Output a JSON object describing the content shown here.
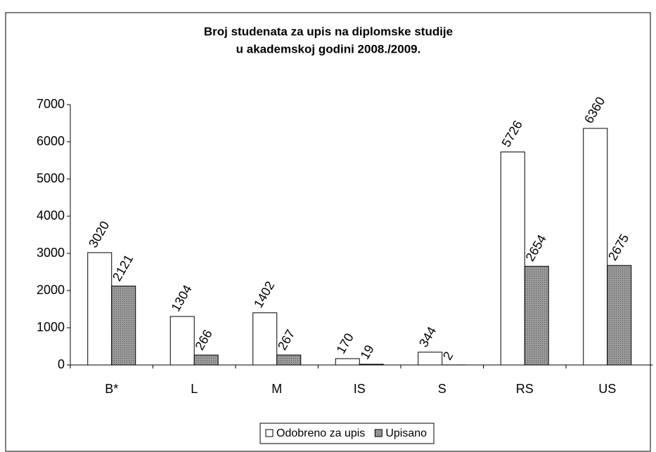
{
  "chart_data": {
    "type": "bar",
    "title": [
      "Broj studenata za upis na diplomske studije",
      "u akademskoj godini 2008./2009."
    ],
    "categories": [
      "B*",
      "L",
      "M",
      "IS",
      "S",
      "RS",
      "US"
    ],
    "series": [
      {
        "name": "Odobreno za upis",
        "color": "#ffffff",
        "values": [
          3020,
          1304,
          1402,
          170,
          344,
          5726,
          6360
        ]
      },
      {
        "name": "Upisano",
        "color": "#9a9a9a",
        "values": [
          2121,
          266,
          267,
          19,
          2,
          2654,
          2675
        ]
      }
    ],
    "ylim": [
      0,
      7000
    ],
    "yticks": [
      0,
      1000,
      2000,
      3000,
      4000,
      5000,
      6000,
      7000
    ],
    "legend": "bottom"
  }
}
